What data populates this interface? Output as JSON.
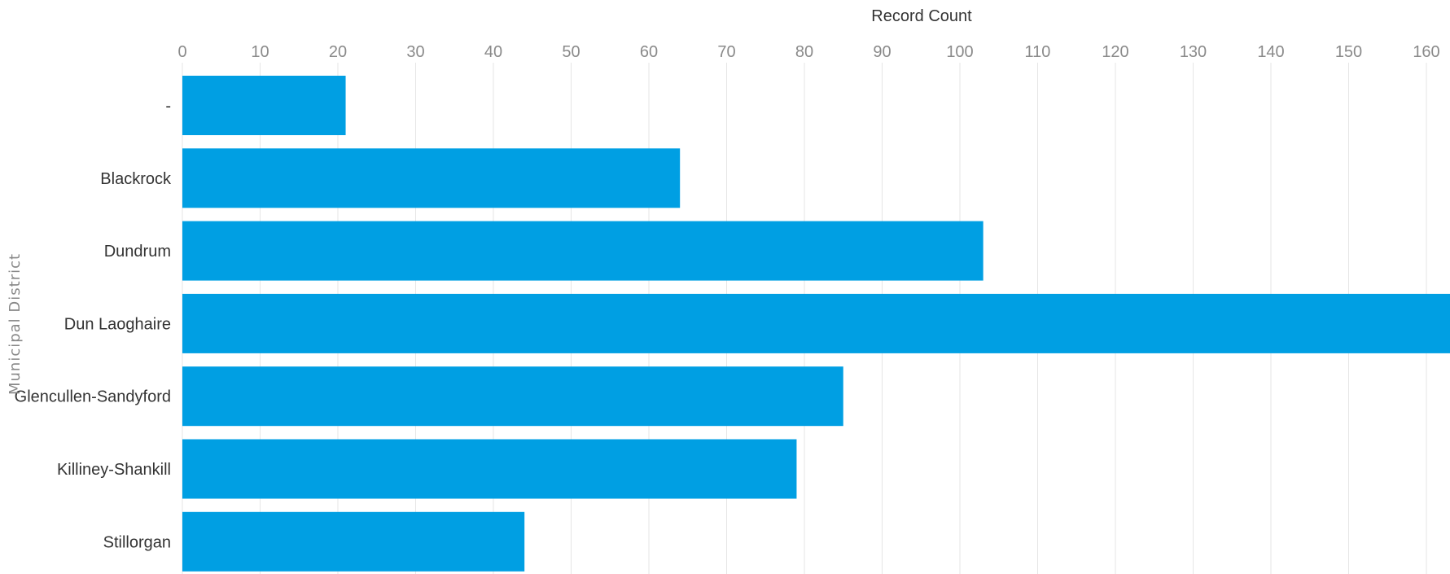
{
  "chart_data": {
    "type": "bar",
    "orientation": "horizontal",
    "xlabel": "Record Count",
    "ylabel": "Municipal District",
    "categories": [
      "-",
      "Blackrock",
      "Dundrum",
      "Dun Laoghaire",
      "Glencullen-Sandyford",
      "Killiney-Shankill",
      "Stillorgan"
    ],
    "values": [
      21,
      64,
      103,
      170,
      85,
      79,
      44
    ],
    "xlim": [
      0,
      163
    ],
    "xticks": [
      0,
      10,
      20,
      30,
      40,
      50,
      60,
      70,
      80,
      90,
      100,
      110,
      120,
      130,
      140,
      150,
      160
    ],
    "x_axis_position": "top",
    "grid": true,
    "bar_color": "#009fe3"
  }
}
